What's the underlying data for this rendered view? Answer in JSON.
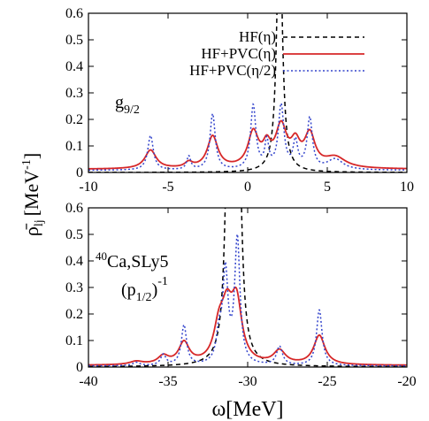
{
  "figure": {
    "ylabel_main": "ρ̄",
    "ylabel_sub": "lj",
    "ylabel_unit": "[MeV",
    "ylabel_exp": "-1",
    "ylabel_close": "]",
    "xlabel": "ω[MeV]"
  },
  "chart_data": [
    {
      "type": "line",
      "panel": "top",
      "xlim": [
        -10,
        10
      ],
      "ylim": [
        0,
        0.6
      ],
      "xticks": [
        "-10",
        "-5",
        "0",
        "5",
        "10"
      ],
      "yticks": [
        "0",
        "0.1",
        "0.2",
        "0.3",
        "0.4",
        "0.5",
        "0.6"
      ],
      "legend_placement": "top-right",
      "annotation": {
        "main": "g",
        "sub": "9/2"
      },
      "series": [
        {
          "name": "HF(η)",
          "color": "#000000",
          "dash": "dashed",
          "peaks": [
            {
              "x": 2.0,
              "amp": 1.0,
              "w": 0.4
            }
          ],
          "x": [
            -10,
            -6,
            -3,
            -1,
            0.5,
            1.2,
            1.6,
            1.8,
            2.0,
            2.2,
            2.4,
            2.8,
            3.5,
            5,
            10
          ],
          "y": [
            0.001,
            0.003,
            0.006,
            0.012,
            0.03,
            0.08,
            0.2,
            0.35,
            1.0,
            0.35,
            0.2,
            0.08,
            0.03,
            0.01,
            0.002
          ]
        },
        {
          "name": "HF+PVC(η)",
          "color": "#d62728",
          "dash": "solid",
          "peaks": [
            {
              "x": -6.1,
              "amp": 0.07,
              "w": 0.85
            },
            {
              "x": -3.7,
              "amp": 0.02,
              "w": 0.6
            },
            {
              "x": -2.2,
              "amp": 0.12,
              "w": 0.8
            },
            {
              "x": 0.35,
              "amp": 0.13,
              "w": 0.8
            },
            {
              "x": 1.2,
              "amp": 0.07,
              "w": 0.6
            },
            {
              "x": 2.1,
              "amp": 0.15,
              "w": 0.85
            },
            {
              "x": 3.0,
              "amp": 0.08,
              "w": 0.7
            },
            {
              "x": 3.9,
              "amp": 0.12,
              "w": 0.8
            },
            {
              "x": 5.5,
              "amp": 0.04,
              "w": 1.6
            }
          ],
          "baseline": 0.012
        },
        {
          "name": "HF+PVC(η/2)",
          "color": "#3344cc",
          "dash": "dotted",
          "peaks": [
            {
              "x": -6.1,
              "amp": 0.13,
              "w": 0.42
            },
            {
              "x": -3.7,
              "amp": 0.05,
              "w": 0.3
            },
            {
              "x": -2.2,
              "amp": 0.21,
              "w": 0.4
            },
            {
              "x": 0.35,
              "amp": 0.24,
              "w": 0.4
            },
            {
              "x": 1.2,
              "amp": 0.1,
              "w": 0.3
            },
            {
              "x": 2.1,
              "amp": 0.24,
              "w": 0.42
            },
            {
              "x": 3.0,
              "amp": 0.1,
              "w": 0.35
            },
            {
              "x": 3.9,
              "amp": 0.19,
              "w": 0.4
            },
            {
              "x": 5.5,
              "amp": 0.04,
              "w": 1.2
            }
          ],
          "baseline": 0.008
        }
      ]
    },
    {
      "type": "line",
      "panel": "bottom",
      "xlim": [
        -40,
        -20
      ],
      "ylim": [
        0,
        0.6
      ],
      "xticks": [
        "-40",
        "-35",
        "-30",
        "-25",
        "-20"
      ],
      "yticks": [
        "0",
        "0.1",
        "0.2",
        "0.3",
        "0.4",
        "0.5",
        "0.6"
      ],
      "annotation": {
        "sup": "40",
        "main": "Ca,SLy5",
        "line2_main": "(p",
        "line2_sub": "1/2",
        "line2_close": ")",
        "line2_sup": "-1"
      },
      "series": [
        {
          "name": "HF(η)",
          "color": "#000000",
          "dash": "dashed",
          "peaks": [
            {
              "x": -31.2,
              "amp": 1.0,
              "w": 0.45
            },
            {
              "x": -30.6,
              "amp": 1.0,
              "w": 0.45
            }
          ],
          "baseline": 0.001
        },
        {
          "name": "HF+PVC(η)",
          "color": "#d62728",
          "dash": "solid",
          "peaks": [
            {
              "x": -37.0,
              "amp": 0.012,
              "w": 1.0
            },
            {
              "x": -35.3,
              "amp": 0.03,
              "w": 0.8
            },
            {
              "x": -34.0,
              "amp": 0.08,
              "w": 0.8
            },
            {
              "x": -31.8,
              "amp": 0.12,
              "w": 0.8
            },
            {
              "x": -31.3,
              "amp": 0.17,
              "w": 0.8
            },
            {
              "x": -30.7,
              "amp": 0.22,
              "w": 0.8
            },
            {
              "x": -28.0,
              "amp": 0.05,
              "w": 0.9
            },
            {
              "x": -25.5,
              "amp": 0.11,
              "w": 0.85
            }
          ],
          "baseline": 0.006
        },
        {
          "name": "HF+PVC(η/2)",
          "color": "#3344cc",
          "dash": "dotted",
          "peaks": [
            {
              "x": -37.0,
              "amp": 0.012,
              "w": 0.5
            },
            {
              "x": -35.3,
              "amp": 0.04,
              "w": 0.4
            },
            {
              "x": -34.0,
              "amp": 0.15,
              "w": 0.4
            },
            {
              "x": -31.8,
              "amp": 0.1,
              "w": 0.4
            },
            {
              "x": -31.4,
              "amp": 0.34,
              "w": 0.4
            },
            {
              "x": -30.65,
              "amp": 0.47,
              "w": 0.4
            },
            {
              "x": -28.0,
              "amp": 0.07,
              "w": 0.45
            },
            {
              "x": -25.5,
              "amp": 0.21,
              "w": 0.42
            }
          ],
          "baseline": 0.004
        }
      ]
    }
  ]
}
